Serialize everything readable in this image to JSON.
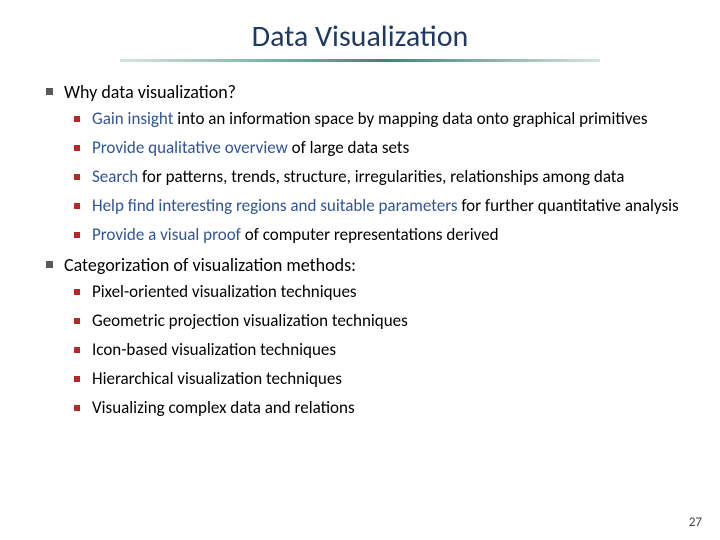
{
  "title": "Data Visualization",
  "colors": {
    "title_color": "#1f3864",
    "highlight_color": "#2f5496",
    "bullet_lvl1": "#595959",
    "bullet_lvl2": "#b02a2a",
    "background": "#ffffff"
  },
  "page_number": "27",
  "list": {
    "item1": {
      "label": "Why data visualization?",
      "sub": {
        "a_hl": "Gain insight",
        "a_rest": " into an information space by mapping data onto graphical primitives",
        "b_hl": "Provide qualitative overview",
        "b_rest": " of large data sets",
        "c_hl": "Search",
        "c_rest": " for patterns, trends, structure, irregularities, relationships among data",
        "d_hl": "Help find interesting regions and suitable parameters",
        "d_rest": " for further quantitative analysis",
        "e_hl": "Provide a visual proof",
        "e_rest": " of computer representations derived"
      }
    },
    "item2": {
      "label": "Categorization of visualization methods:",
      "sub": {
        "a": "Pixel-oriented visualization techniques",
        "b": "Geometric projection visualization techniques",
        "c": "Icon-based visualization techniques",
        "d": "Hierarchical visualization techniques",
        "e": "Visualizing complex data and relations"
      }
    }
  }
}
